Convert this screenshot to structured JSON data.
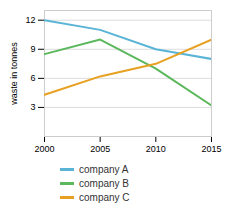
{
  "chart_data": {
    "type": "line",
    "ylabel": "waste in tonnes",
    "x": [
      2000,
      2005,
      2010,
      2015
    ],
    "series": [
      {
        "name": "company A",
        "color": "#5ab4d6",
        "values": [
          12,
          11,
          9,
          8
        ]
      },
      {
        "name": "company B",
        "color": "#5cb85c",
        "values": [
          8.5,
          10,
          7,
          3.2
        ]
      },
      {
        "name": "company C",
        "color": "#e8a020",
        "values": [
          4.3,
          6.2,
          7.5,
          10
        ]
      }
    ],
    "xlim": [
      2000,
      2015
    ],
    "xticks": [
      2000,
      2005,
      2010,
      2015
    ],
    "ylim": [
      0,
      13
    ],
    "yticks": [
      3,
      6,
      9,
      12
    ],
    "grid": true,
    "legend": "bottom"
  }
}
